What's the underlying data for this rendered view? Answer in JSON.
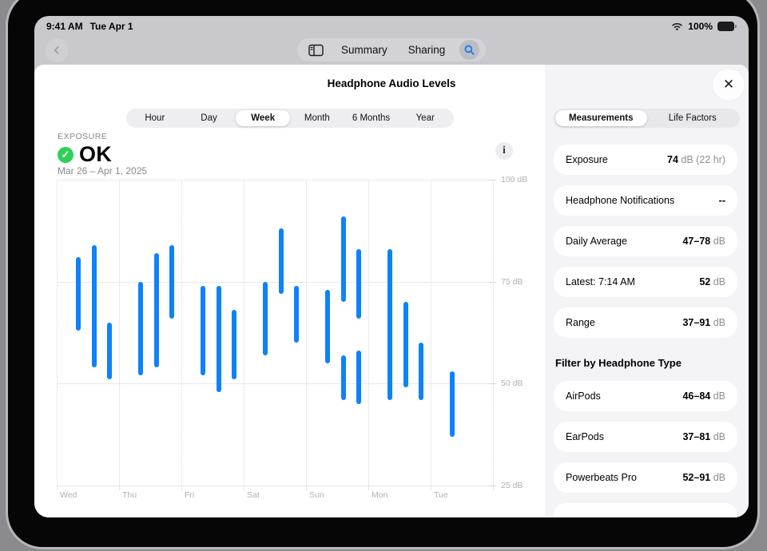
{
  "status_bar": {
    "time": "9:41 AM",
    "date": "Tue Apr 1",
    "battery": "100%"
  },
  "nav": {
    "summary": "Summary",
    "sharing": "Sharing"
  },
  "sheet": {
    "title": "Headphone Audio Levels"
  },
  "icons": {
    "back": "‹",
    "close": "✕",
    "check": "✓",
    "info": "i"
  },
  "period_tabs": {
    "options": [
      "Hour",
      "Day",
      "Week",
      "Month",
      "6 Months",
      "Year"
    ],
    "selected": "Week"
  },
  "exposure": {
    "label": "EXPOSURE",
    "status": "OK",
    "date_range": "Mar 26 – Apr 1, 2025"
  },
  "chart_data": {
    "type": "range-bar",
    "title": "Headphone Audio Levels — weekly exposure",
    "ylabel": "dB",
    "ylim": [
      25,
      100
    ],
    "yticks": [
      {
        "value": 100,
        "label": "100 dB"
      },
      {
        "value": 75,
        "label": "75 dB"
      },
      {
        "value": 50,
        "label": "50 dB"
      },
      {
        "value": 25,
        "label": "25 dB"
      }
    ],
    "categories": [
      "Wed",
      "Thu",
      "Fri",
      "Sat",
      "Sun",
      "Mon",
      "Tue"
    ],
    "bars": [
      {
        "day": "Wed",
        "slot": 0,
        "min_db": 63,
        "max_db": 81
      },
      {
        "day": "Wed",
        "slot": 1,
        "min_db": 54,
        "max_db": 84
      },
      {
        "day": "Wed",
        "slot": 2,
        "min_db": 51,
        "max_db": 65
      },
      {
        "day": "Thu",
        "slot": 0,
        "min_db": 52,
        "max_db": 75
      },
      {
        "day": "Thu",
        "slot": 1,
        "min_db": 54,
        "max_db": 82
      },
      {
        "day": "Thu",
        "slot": 2,
        "min_db": 66,
        "max_db": 84
      },
      {
        "day": "Fri",
        "slot": 0,
        "min_db": 52,
        "max_db": 74
      },
      {
        "day": "Fri",
        "slot": 1,
        "min_db": 48,
        "max_db": 74
      },
      {
        "day": "Fri",
        "slot": 2,
        "min_db": 51,
        "max_db": 68
      },
      {
        "day": "Sat",
        "slot": 0,
        "min_db": 57,
        "max_db": 75
      },
      {
        "day": "Sat",
        "slot": 1,
        "min_db": 72,
        "max_db": 88
      },
      {
        "day": "Sat",
        "slot": 2,
        "min_db": 60,
        "max_db": 74
      },
      {
        "day": "Sun",
        "slot": 0,
        "min_db": 55,
        "max_db": 73
      },
      {
        "day": "Sun",
        "slot": 1,
        "min_db": 70,
        "max_db": 91
      },
      {
        "day": "Sun",
        "slot": 1,
        "min_db": 46,
        "max_db": 57
      },
      {
        "day": "Sun",
        "slot": 2,
        "min_db": 66,
        "max_db": 83
      },
      {
        "day": "Sun",
        "slot": 2,
        "min_db": 45,
        "max_db": 58
      },
      {
        "day": "Mon",
        "slot": 0,
        "min_db": 46,
        "max_db": 83
      },
      {
        "day": "Mon",
        "slot": 1,
        "min_db": 49,
        "max_db": 70
      },
      {
        "day": "Mon",
        "slot": 2,
        "min_db": 46,
        "max_db": 60
      },
      {
        "day": "Tue",
        "slot": 0,
        "min_db": 37,
        "max_db": 53
      }
    ],
    "bar_color": "#0e82f9",
    "grid": true,
    "legend": false
  },
  "panel": {
    "tabs": {
      "options": [
        "Measurements",
        "Life Factors"
      ],
      "selected": "Measurements"
    },
    "measurements": [
      {
        "label": "Exposure",
        "value": "74",
        "unit": "dB (22 hr)"
      },
      {
        "label": "Headphone Notifications",
        "value": "--",
        "unit": ""
      },
      {
        "label": "Daily Average",
        "value": "47–78",
        "unit": "dB"
      },
      {
        "label": "Latest: 7:14 AM",
        "value": "52",
        "unit": "dB"
      },
      {
        "label": "Range",
        "value": "37–91",
        "unit": "dB"
      }
    ],
    "filter_heading": "Filter by Headphone Type",
    "filters": [
      {
        "label": "AirPods",
        "value": "46–84",
        "unit": "dB"
      },
      {
        "label": "EarPods",
        "value": "37–81",
        "unit": "dB"
      },
      {
        "label": "Powerbeats Pro",
        "value": "52–91",
        "unit": "dB"
      }
    ]
  },
  "colors": {
    "accent_blue": "#0e82f9",
    "ok_green": "#2ed158",
    "panel_bg": "#f4f4f6",
    "chrome_bg": "#c8c8cd"
  }
}
